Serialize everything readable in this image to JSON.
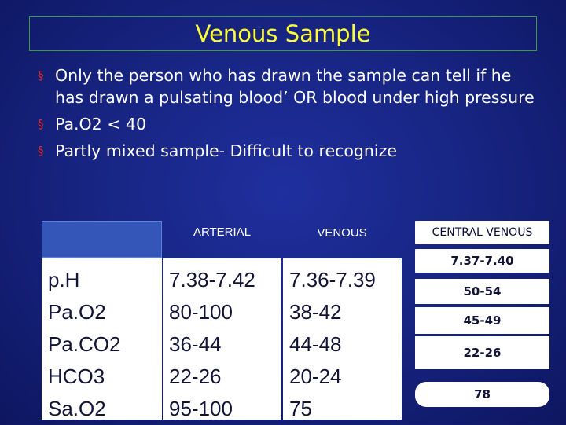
{
  "title": "Venous Sample",
  "bullets": [
    "Only the person who has drawn the sample can tell if he has drawn a pulsating blood’ OR  blood under high pressure",
    "Pa.O2  < 40",
    "Partly mixed sample- Difficult to recognize"
  ],
  "bullet_marker": "§",
  "table": {
    "headers": {
      "blank": "",
      "arterial": "ARTERIAL",
      "venous": "VENOUS",
      "central_venous": "CENTRAL VENOUS"
    },
    "labels": [
      "p.H",
      "Pa.O2",
      "Pa.CO2",
      "HCO3",
      "Sa.O2"
    ],
    "arterial": [
      "7.38-7.42",
      "80-100",
      "36-44",
      "22-26",
      "95-100"
    ],
    "venous": [
      "7.36-7.39",
      "38-42",
      "44-48",
      "20-24",
      "75"
    ],
    "central_venous": [
      "7.37-7.40",
      "50-54",
      "45-49",
      "22-26",
      "78"
    ]
  },
  "colors": {
    "title": "#ffff33",
    "bullet_marker": "#e03030",
    "background": "#16237e"
  }
}
